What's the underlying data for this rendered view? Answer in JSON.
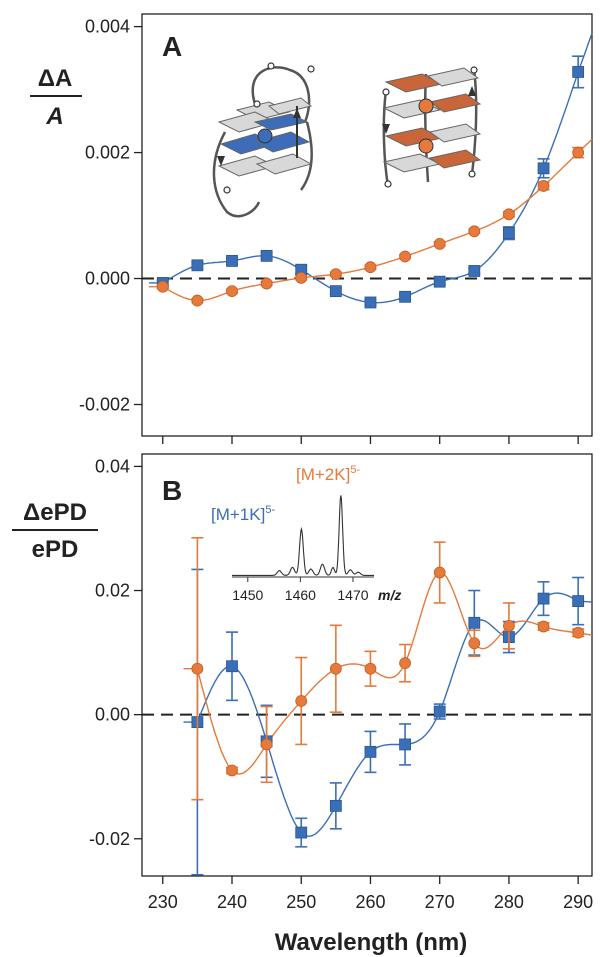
{
  "colors": {
    "blue": "#3a6fb8",
    "orange": "#e57a3c",
    "axis": "#222222",
    "gq_blue": "#3d6cb8",
    "gq_orange": "#c8663a",
    "gq_grey": "#d8d8d8"
  },
  "chart_data": [
    {
      "type": "scatter",
      "panel_label": "A",
      "ylabel_top": "ΔA",
      "ylabel_bottom": "A",
      "ylim": [
        -0.0025,
        0.0042
      ],
      "yticks": [
        "0.004",
        "0.002",
        "0.000",
        "-0.002"
      ],
      "ytick_values": [
        0.004,
        0.002,
        0.0,
        -0.002
      ],
      "xlim": [
        227,
        292
      ],
      "zero_line": "dashed",
      "series": [
        {
          "marker": "square",
          "color": "blue",
          "x": [
            230,
            235,
            240,
            245,
            250,
            255,
            260,
            265,
            270,
            275,
            280,
            285,
            290
          ],
          "y": [
            -7e-05,
            0.00021,
            0.00028,
            0.00036,
            0.00014,
            -0.0002,
            -0.00038,
            -0.00029,
            -5e-05,
            0.00012,
            0.00072,
            0.00175,
            0.00328
          ],
          "err": [
            4e-05,
            5e-05,
            5e-05,
            5e-05,
            6e-05,
            5e-05,
            4e-05,
            4e-05,
            4e-05,
            4e-05,
            0.0001,
            0.00015,
            0.00025
          ]
        },
        {
          "marker": "circle",
          "color": "orange",
          "x": [
            230,
            235,
            240,
            245,
            250,
            255,
            260,
            265,
            270,
            275,
            280,
            285,
            290
          ],
          "y": [
            -0.00013,
            -0.00035,
            -0.0002,
            -8e-05,
            1e-05,
            7e-05,
            0.00018,
            0.00035,
            0.00055,
            0.00075,
            0.00102,
            0.00147,
            0.002
          ],
          "err": [
            3e-05,
            3e-05,
            3e-05,
            3e-05,
            3e-05,
            3e-05,
            3e-05,
            3e-05,
            3e-05,
            3e-05,
            4e-05,
            6e-05,
            8e-05
          ]
        }
      ]
    },
    {
      "type": "scatter",
      "panel_label": "B",
      "ylabel_top": "ΔePD",
      "ylabel_bottom": "ePD",
      "ylim": [
        -0.026,
        0.042
      ],
      "yticks": [
        "0.04",
        "0.02",
        "0.00",
        "-0.02"
      ],
      "ytick_values": [
        0.04,
        0.02,
        0.0,
        -0.02
      ],
      "xlim": [
        227,
        292
      ],
      "xticks": [
        "230",
        "240",
        "250",
        "260",
        "270",
        "280",
        "290"
      ],
      "xtick_values": [
        230,
        240,
        250,
        260,
        270,
        280,
        290
      ],
      "xlabel": "Wavelength (nm)",
      "zero_line": "dashed",
      "series": [
        {
          "marker": "square",
          "color": "blue",
          "x": [
            235,
            240,
            245,
            250,
            255,
            260,
            265,
            270,
            275,
            280,
            285,
            290
          ],
          "y": [
            -0.0012,
            0.0078,
            -0.0043,
            -0.019,
            -0.0147,
            -0.006,
            -0.0048,
            0.0005,
            0.0148,
            0.0125,
            0.0187,
            0.0183
          ],
          "err": [
            0.0246,
            0.0055,
            0.0058,
            0.0023,
            0.0037,
            0.0033,
            0.0033,
            0.0012,
            0.0052,
            0.0025,
            0.0027,
            0.0038
          ]
        },
        {
          "marker": "circle",
          "color": "orange",
          "x": [
            235,
            240,
            245,
            250,
            255,
            260,
            265,
            270,
            275,
            280,
            285,
            290
          ],
          "y": [
            0.0074,
            -0.009,
            -0.0048,
            0.0022,
            0.0074,
            0.0074,
            0.0083,
            0.0229,
            0.0115,
            0.0143,
            0.0142,
            0.0132
          ],
          "err": [
            0.0211,
            0.0005,
            0.0061,
            0.007,
            0.007,
            0.0028,
            0.003,
            0.0049,
            0.0021,
            0.0037,
            0.0006,
            0.0006
          ]
        }
      ]
    }
  ],
  "inset_ms": {
    "label_orange": "[M+2K]",
    "label_orange_sup": "5-",
    "label_blue": "[M+1K]",
    "label_blue_sup": "5-",
    "xticks": [
      "1450",
      "1460",
      "1470"
    ],
    "xtick_values": [
      1450,
      1460,
      1470
    ],
    "xlim": [
      1447,
      1474
    ],
    "unit": "m/z"
  }
}
